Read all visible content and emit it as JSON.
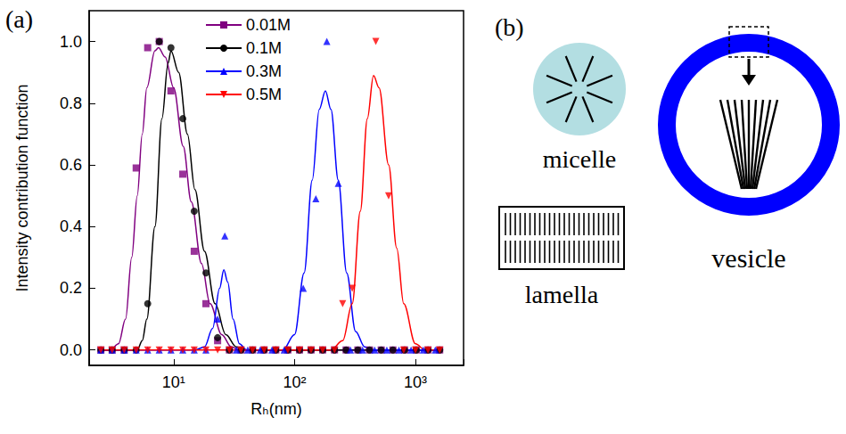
{
  "chart_data": {
    "type": "line",
    "label": "(a)",
    "xlabel": "Rₕ(nm)",
    "ylabel": "Intensity contribution function",
    "log": "x",
    "grid": false,
    "legend": "top",
    "xlim": [
      2,
      2500
    ],
    "xticks": [
      {
        "value": 10,
        "label": "10¹"
      },
      {
        "value": 100,
        "label": "10²"
      },
      {
        "value": 1000,
        "label": "10³"
      }
    ],
    "ylim": [
      -0.05,
      1.1
    ],
    "yticks": [
      {
        "value": 0,
        "label": "0.0"
      },
      0.2,
      0.4,
      0.6,
      0.8,
      {
        "value": 1,
        "label": "1.0"
      }
    ],
    "series": [
      {
        "name": "0.01M",
        "color": "#800080",
        "marker": "square",
        "line_style": "solid",
        "x": [
          2.5,
          3.1,
          3.9,
          4.9,
          6.1,
          7.6,
          9.5,
          11.9,
          14.8,
          18.5,
          23.1,
          28.9,
          36.1,
          45,
          56,
          70,
          88,
          110,
          137,
          171,
          214,
          267,
          334,
          417,
          521,
          651,
          813,
          1016,
          1270,
          1587
        ],
        "values": [
          0,
          0,
          0,
          0.59,
          0.98,
          1.0,
          0.84,
          0.57,
          0.32,
          0.15,
          0.03,
          0,
          0,
          0,
          0,
          0,
          0,
          0,
          0,
          0,
          0,
          0,
          0,
          0,
          0,
          0,
          0,
          0,
          0,
          0
        ],
        "fit": {
          "x": [
            2.5,
            3,
            3.5,
            4,
            4.5,
            5,
            5.5,
            6,
            7,
            7.5,
            8.5,
            10,
            12,
            14,
            17,
            20,
            25,
            30,
            35,
            1587
          ],
          "values": [
            0,
            0,
            0.02,
            0.1,
            0.3,
            0.5,
            0.7,
            0.85,
            0.97,
            0.98,
            0.95,
            0.85,
            0.66,
            0.48,
            0.28,
            0.15,
            0.05,
            0.01,
            0,
            0
          ]
        }
      },
      {
        "name": "0.1M",
        "color": "#000000",
        "marker": "circle",
        "line_style": "solid",
        "x": [
          2.5,
          3.1,
          3.9,
          4.9,
          6.1,
          7.6,
          9.5,
          11.9,
          14.8,
          18.5,
          23.1,
          28.9,
          36.1,
          45,
          56,
          70,
          88,
          110,
          137,
          171,
          214,
          267,
          334,
          417,
          521,
          651,
          813,
          1016,
          1270,
          1587
        ],
        "values": [
          0,
          0,
          0,
          0,
          0.15,
          1.0,
          0.98,
          0.75,
          0.45,
          0.25,
          0.04,
          0,
          0,
          0,
          0,
          0,
          0,
          0,
          0,
          0,
          0,
          0,
          0,
          0,
          0,
          0,
          0,
          0,
          0,
          0
        ],
        "fit": {
          "x": [
            2.5,
            5,
            5.5,
            6,
            7,
            8,
            9,
            9.5,
            11,
            13,
            15,
            18,
            22,
            27,
            33,
            40,
            1587
          ],
          "values": [
            0,
            0,
            0.03,
            0.1,
            0.4,
            0.75,
            0.93,
            0.97,
            0.9,
            0.7,
            0.52,
            0.32,
            0.15,
            0.05,
            0.01,
            0,
            0
          ]
        }
      },
      {
        "name": "0.3M",
        "color": "#0000ff",
        "marker": "triangle",
        "line_style": "solid",
        "x": [
          2.5,
          3.1,
          3.9,
          4.9,
          6.1,
          7.6,
          9.5,
          11.9,
          14.8,
          18.5,
          23.1,
          26.5,
          33,
          41,
          52,
          65,
          82,
          118,
          150,
          185,
          230,
          290,
          365,
          460,
          580,
          730,
          920,
          1160,
          1460
        ],
        "values": [
          0,
          0,
          0,
          0,
          0,
          0,
          0,
          0,
          0,
          0,
          0.1,
          0.37,
          0,
          0,
          0,
          0,
          0,
          0.2,
          0.49,
          1.0,
          0.54,
          0,
          0,
          0,
          0,
          0,
          0,
          0,
          0
        ],
        "fit": {
          "x": [
            2.5,
            15,
            18,
            21,
            24,
            26,
            28,
            31,
            35,
            40,
            80,
            100,
            120,
            140,
            160,
            180,
            200,
            230,
            270,
            320,
            380,
            450,
            1587
          ],
          "values": [
            0,
            0,
            0.01,
            0.07,
            0.2,
            0.26,
            0.22,
            0.1,
            0.02,
            0,
            0,
            0.05,
            0.25,
            0.55,
            0.78,
            0.84,
            0.78,
            0.55,
            0.25,
            0.06,
            0.01,
            0,
            0
          ]
        }
      },
      {
        "name": "0.5M",
        "color": "#ff0000",
        "marker": "triangle-down",
        "line_style": "solid",
        "x": [
          2.5,
          3.1,
          3.9,
          4.9,
          6.1,
          7.6,
          9.5,
          11.9,
          14.8,
          18.5,
          23.1,
          28.9,
          36.1,
          45,
          56,
          70,
          88,
          110,
          137,
          171,
          214,
          250,
          300,
          470,
          600,
          800,
          1000,
          1270,
          1587
        ],
        "values": [
          0,
          0,
          0,
          0,
          0,
          0,
          0,
          0,
          0,
          0,
          0,
          0,
          0,
          0,
          0,
          0,
          0,
          0,
          0,
          0,
          0,
          0.15,
          0.2,
          1.0,
          0.5,
          0,
          0,
          0,
          0
        ],
        "fit": {
          "x": [
            2.5,
            200,
            250,
            300,
            350,
            400,
            450,
            500,
            600,
            700,
            800,
            1000,
            1200,
            1587
          ],
          "values": [
            0,
            0,
            0.03,
            0.15,
            0.45,
            0.75,
            0.89,
            0.85,
            0.6,
            0.33,
            0.15,
            0.02,
            0,
            0
          ]
        }
      }
    ]
  },
  "diagram": {
    "label": "(b)",
    "nodes": [
      {
        "label": "micelle"
      },
      {
        "label": "lamella"
      },
      {
        "label": "vesicle"
      }
    ]
  }
}
